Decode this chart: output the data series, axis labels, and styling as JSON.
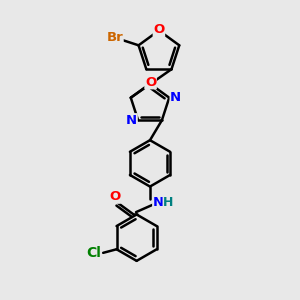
{
  "background_color": "#e8e8e8",
  "bond_color": "#000000",
  "bond_width": 1.8,
  "atom_colors": {
    "N": "#0000ff",
    "O": "#ff0000",
    "Br": "#cc6600",
    "Cl": "#008000",
    "H": "#008080"
  },
  "font_size": 9.5,
  "figsize": [
    3.0,
    3.0
  ],
  "dpi": 100
}
